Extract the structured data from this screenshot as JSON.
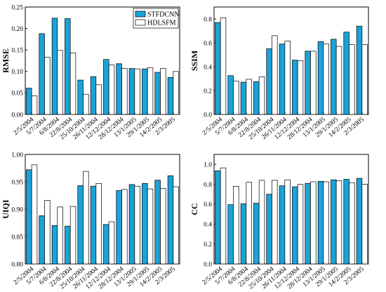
{
  "colors": {
    "stfdcnn": "#1aa3d9",
    "hdlsfm": "#ffffff",
    "outline": "#000000"
  },
  "legend": [
    {
      "key": "stfdcnn",
      "label": "STFDCNN"
    },
    {
      "key": "hdlsfm",
      "label": "HDLSFM"
    }
  ],
  "chart_data": [
    {
      "type": "bar",
      "ylabel": "RMSE",
      "ylim": [
        0,
        0.25
      ],
      "yticks": [
        "0.00",
        "0.05",
        "0.10",
        "0.15",
        "0.20",
        "0.25"
      ],
      "categories": [
        "2/5/2004",
        "5/7/2004",
        "6/8/2004",
        "22/8/2004",
        "25/10/2004",
        "26/11/2004",
        "12/12/2004",
        "28/12/2004",
        "13/1/2005",
        "29/1/2005",
        "14/2/2005",
        "2/3/2005"
      ],
      "series": [
        {
          "name": "STFDCNN",
          "values": [
            0.061,
            0.188,
            0.224,
            0.223,
            0.08,
            0.088,
            0.128,
            0.118,
            0.107,
            0.106,
            0.098,
            0.086
          ]
        },
        {
          "name": "HDLSFM",
          "values": [
            0.043,
            0.133,
            0.149,
            0.143,
            0.047,
            0.069,
            0.115,
            0.107,
            0.106,
            0.109,
            0.107,
            0.1
          ]
        }
      ],
      "legend": "top-right"
    },
    {
      "type": "bar",
      "ylabel": "SSIM",
      "ylim": [
        0,
        0.9
      ],
      "yticks": [
        "0.0",
        "0.2",
        "0.4",
        "0.6",
        "0.8"
      ],
      "categories": [
        "2/5/2004",
        "5/7/2004",
        "6/8/2004",
        "22/8/2004",
        "25/10/2004",
        "26/11/2004",
        "12/12/2004",
        "28/12/2004",
        "13/1/2005",
        "29/1/2005",
        "14/2/2005",
        "2/3/2005"
      ],
      "series": [
        {
          "name": "STFDCNN",
          "values": [
            0.77,
            0.325,
            0.27,
            0.275,
            0.55,
            0.59,
            0.455,
            0.53,
            0.61,
            0.63,
            0.69,
            0.74
          ]
        },
        {
          "name": "HDLSFM",
          "values": [
            0.81,
            0.28,
            0.295,
            0.315,
            0.66,
            0.615,
            0.45,
            0.53,
            0.59,
            0.57,
            0.585,
            0.585
          ]
        }
      ]
    },
    {
      "type": "bar",
      "ylabel": "UIQI",
      "ylim": [
        0.8,
        1.0
      ],
      "yticks": [
        "0.80",
        "0.85",
        "0.90",
        "0.95",
        "1.00"
      ],
      "categories": [
        "2/5/2004",
        "5/7/2004",
        "6/8/2004",
        "22/8/2004",
        "25/10/2004",
        "26/11/2004",
        "12/12/2004",
        "28/12/2004",
        "13/1/2005",
        "29/1/2005",
        "14/2/2005",
        "2/3/2005"
      ],
      "series": [
        {
          "name": "STFDCNN",
          "values": [
            0.972,
            0.888,
            0.87,
            0.869,
            0.943,
            0.942,
            0.872,
            0.934,
            0.945,
            0.947,
            0.953,
            0.961
          ]
        },
        {
          "name": "HDLSFM",
          "values": [
            0.981,
            0.916,
            0.904,
            0.905,
            0.969,
            0.947,
            0.877,
            0.936,
            0.942,
            0.937,
            0.938,
            0.941
          ]
        }
      ]
    },
    {
      "type": "bar",
      "ylabel": "CC",
      "ylim": [
        0,
        1.1
      ],
      "yticks": [
        "0.0",
        "0.2",
        "0.4",
        "0.6",
        "0.8",
        "1.0"
      ],
      "categories": [
        "2/5/2004",
        "5/7/2004",
        "6/8/2004",
        "22/8/2004",
        "25/10/2004",
        "26/11/2004",
        "12/12/2004",
        "28/12/2004",
        "13/1/2005",
        "29/1/2005",
        "14/2/2005",
        "2/3/2005"
      ],
      "series": [
        {
          "name": "STFDCNN",
          "values": [
            0.935,
            0.595,
            0.605,
            0.61,
            0.7,
            0.785,
            0.775,
            0.81,
            0.83,
            0.845,
            0.85,
            0.86
          ]
        },
        {
          "name": "HDLSFM",
          "values": [
            0.965,
            0.78,
            0.82,
            0.84,
            0.84,
            0.845,
            0.8,
            0.825,
            0.825,
            0.835,
            0.815,
            0.8
          ]
        }
      ]
    }
  ]
}
